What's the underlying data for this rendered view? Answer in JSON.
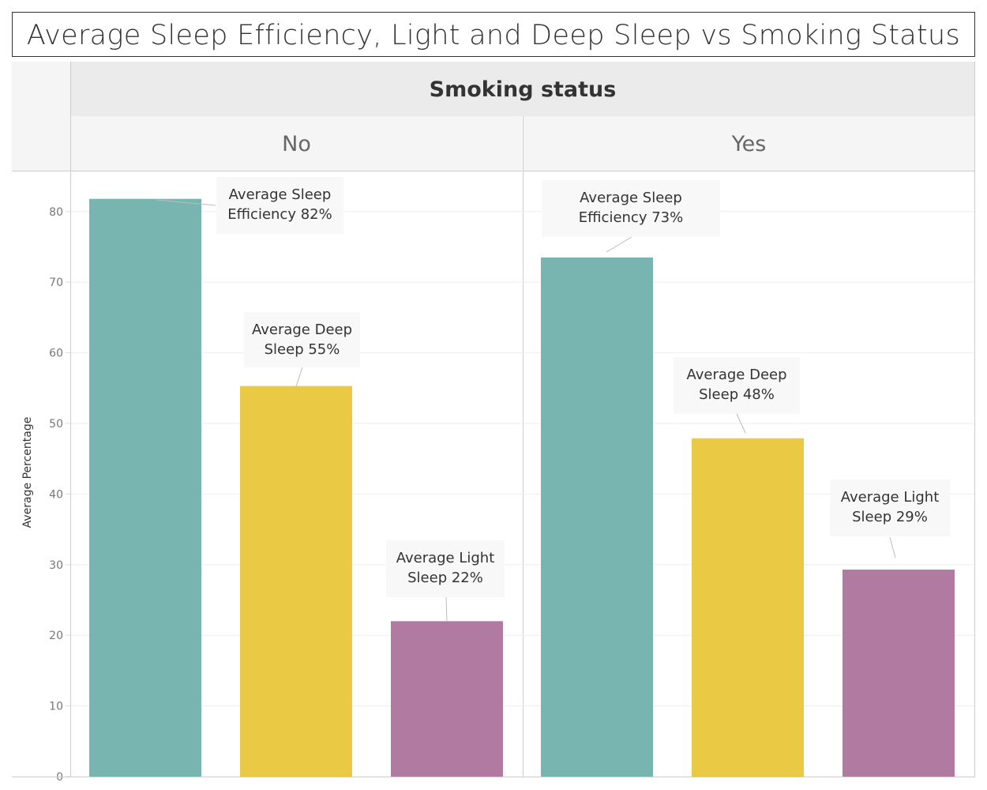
{
  "chart_data": {
    "type": "bar",
    "title": "Average Sleep Efficiency, Light and Deep Sleep vs Smoking Status",
    "column_header": "Smoking status",
    "categories": [
      "No",
      "Yes"
    ],
    "ylabel": "Average Percentage",
    "ylim": [
      0,
      85.7
    ],
    "yticks": [
      0,
      10,
      20,
      30,
      40,
      50,
      60,
      70,
      80
    ],
    "grid": true,
    "legend": "none",
    "series": [
      {
        "name": "Average Sleep Efficiency",
        "color": "#79b5b0",
        "values": [
          81.8,
          73.5
        ],
        "labels": [
          "Average Sleep Efficiency 82%",
          "Average Sleep Efficiency 73%"
        ]
      },
      {
        "name": "Average Deep Sleep",
        "color": "#eac945",
        "values": [
          55.3,
          47.9
        ],
        "labels": [
          "Average Deep Sleep 55%",
          "Average Deep Sleep 48%"
        ]
      },
      {
        "name": "Average Light Sleep",
        "color": "#b07aa1",
        "values": [
          22.0,
          29.3
        ],
        "labels": [
          "Average Light Sleep 22%",
          "Average Light Sleep 29%"
        ]
      }
    ]
  }
}
